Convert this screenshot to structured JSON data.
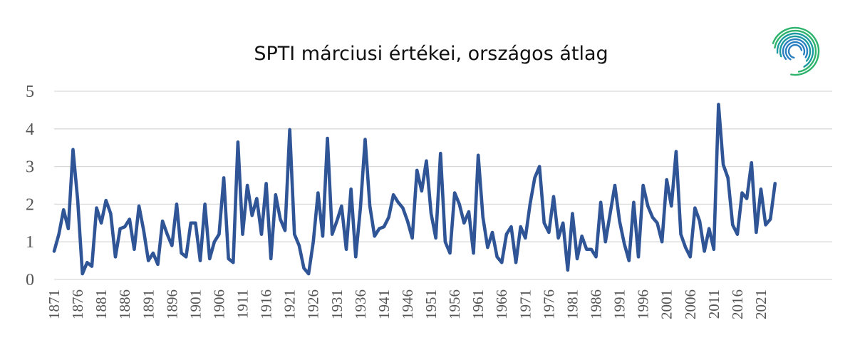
{
  "chart_data": {
    "type": "line",
    "title": "SPTI márciusi értékei, országos átlag",
    "xlabel": "",
    "ylabel": "",
    "ylim": [
      0,
      5
    ],
    "yticks": [
      "0",
      "1",
      "2",
      "3",
      "4",
      "5"
    ],
    "x_start": 1871,
    "x_end": 2024,
    "xtick_labels": [
      "1871",
      "1876",
      "1881",
      "1886",
      "1891",
      "1896",
      "1901",
      "1906",
      "1911",
      "1916",
      "1921",
      "1926",
      "1931",
      "1936",
      "1941",
      "1946",
      "1951",
      "1956",
      "1961",
      "1966",
      "1971",
      "1976",
      "1981",
      "1986",
      "1991",
      "1996",
      "2001",
      "2006",
      "2011",
      "2016",
      "2021"
    ],
    "grid": true,
    "legend": "none",
    "series": [
      {
        "color": "#2f5597",
        "values": [
          0.75,
          1.2,
          1.85,
          1.35,
          3.45,
          2.1,
          0.15,
          0.45,
          0.35,
          1.9,
          1.5,
          2.1,
          1.75,
          0.6,
          1.35,
          1.4,
          1.6,
          0.8,
          1.95,
          1.3,
          0.5,
          0.7,
          0.4,
          1.55,
          1.2,
          0.9,
          2.0,
          0.7,
          0.6,
          1.5,
          1.5,
          0.5,
          2.0,
          0.55,
          1.0,
          1.2,
          2.7,
          0.55,
          0.45,
          3.65,
          1.2,
          2.5,
          1.7,
          2.15,
          1.2,
          2.55,
          0.55,
          2.25,
          1.6,
          1.3,
          3.98,
          1.2,
          0.9,
          0.3,
          0.15,
          1.0,
          2.3,
          1.15,
          3.75,
          1.2,
          1.55,
          1.95,
          0.8,
          2.4,
          0.6,
          1.9,
          3.72,
          1.95,
          1.15,
          1.35,
          1.4,
          1.65,
          2.25,
          2.05,
          1.9,
          1.55,
          1.1,
          2.9,
          2.35,
          3.15,
          1.75,
          1.1,
          3.35,
          1.0,
          0.7,
          2.3,
          2.0,
          1.5,
          1.8,
          0.7,
          3.3,
          1.65,
          0.85,
          1.25,
          0.6,
          0.45,
          1.2,
          1.4,
          0.45,
          1.4,
          1.1,
          2.0,
          2.7,
          3.0,
          1.5,
          1.25,
          2.2,
          1.1,
          1.5,
          0.25,
          1.75,
          0.55,
          1.15,
          0.8,
          0.8,
          0.6,
          2.05,
          1.0,
          1.75,
          2.5,
          1.55,
          0.95,
          0.5,
          2.05,
          0.6,
          2.5,
          1.95,
          1.65,
          1.5,
          1.0,
          2.65,
          1.95,
          3.4,
          1.2,
          0.85,
          0.6,
          1.9,
          1.55,
          0.75,
          1.35,
          0.8,
          4.65,
          3.05,
          2.7,
          1.45,
          1.2,
          2.3,
          2.15,
          3.1,
          1.25,
          2.4,
          1.45,
          1.6,
          2.55
        ]
      }
    ]
  },
  "logo": {
    "icon": "circular-swirl-logo-icon",
    "colors": [
      "#2db36c",
      "#1a9aa0",
      "#2a7fc0"
    ]
  }
}
